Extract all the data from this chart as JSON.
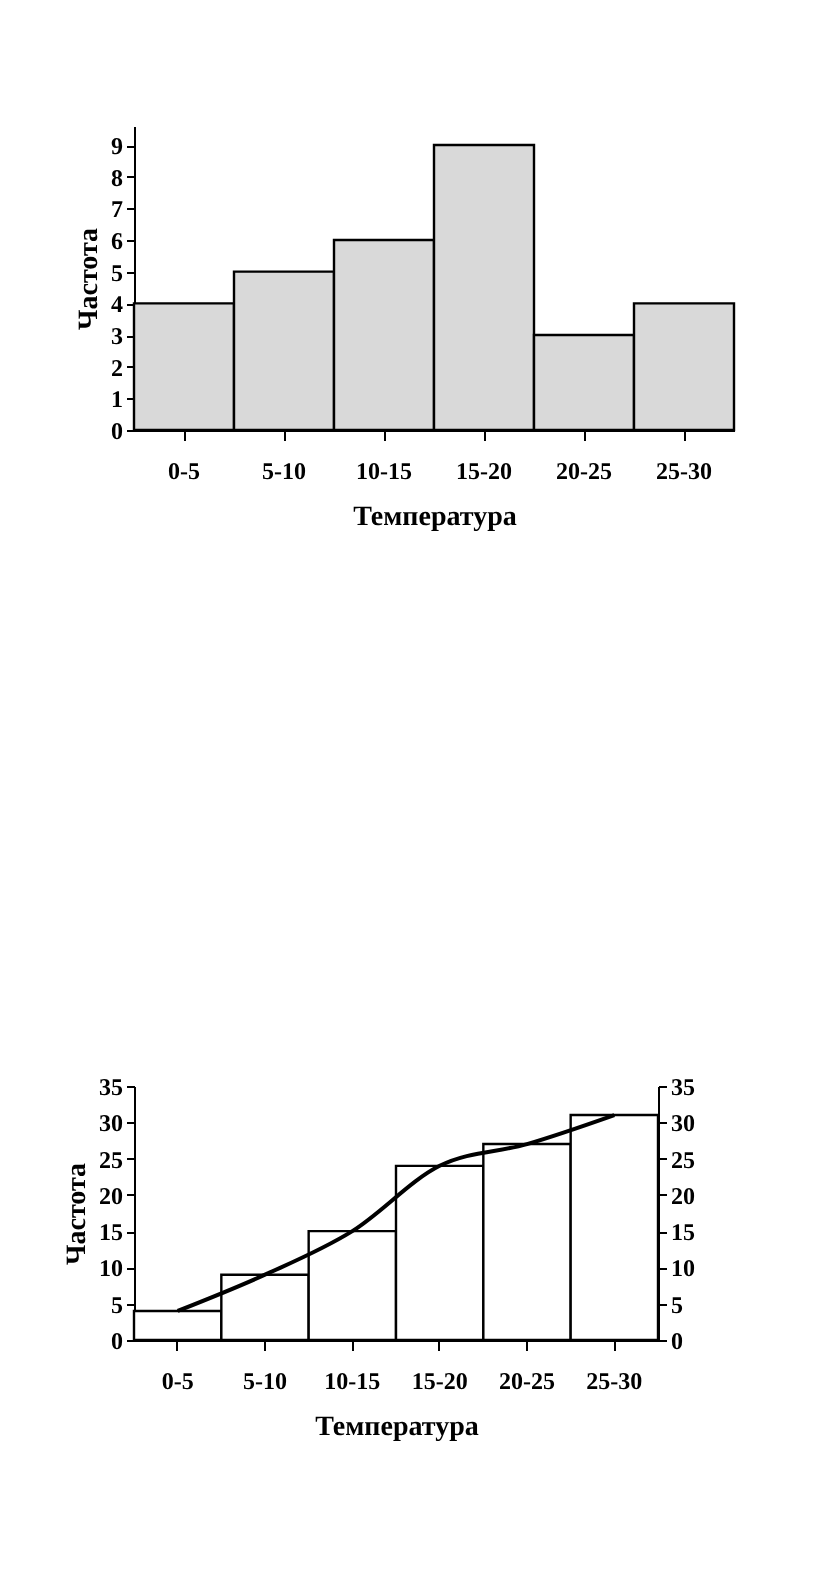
{
  "chart_data": [
    {
      "type": "bar",
      "xlabel": "Температура",
      "ylabel": "Частота",
      "categories": [
        "0-5",
        "5-10",
        "10-15",
        "15-20",
        "20-25",
        "25-30"
      ],
      "values": [
        4,
        5,
        6,
        9,
        3,
        4
      ],
      "color": "#d9d9d9",
      "ylim": [
        0,
        9.6
      ],
      "yticks": [
        0,
        1,
        2,
        3,
        4,
        5,
        6,
        7,
        8,
        9
      ]
    },
    {
      "type": "bar",
      "xlabel": "Температура",
      "ylabel": "Частота",
      "categories": [
        "0-5",
        "5-10",
        "10-15",
        "15-20",
        "20-25",
        "25-30"
      ],
      "ylim": [
        0,
        35
      ],
      "yticks": [
        0,
        5,
        10,
        15,
        20,
        25,
        30,
        35
      ],
      "y2lim": [
        0,
        35
      ],
      "y2ticks": [
        0,
        5,
        10,
        15,
        20,
        25,
        30,
        35
      ],
      "series": [
        {
          "type": "bar",
          "values": [
            4,
            9,
            15,
            24,
            27,
            31
          ],
          "color": "#ffffff"
        },
        {
          "type": "line",
          "values": [
            4,
            9,
            15,
            24,
            27,
            31
          ],
          "color": "#000000",
          "axis": "y2"
        }
      ]
    }
  ]
}
